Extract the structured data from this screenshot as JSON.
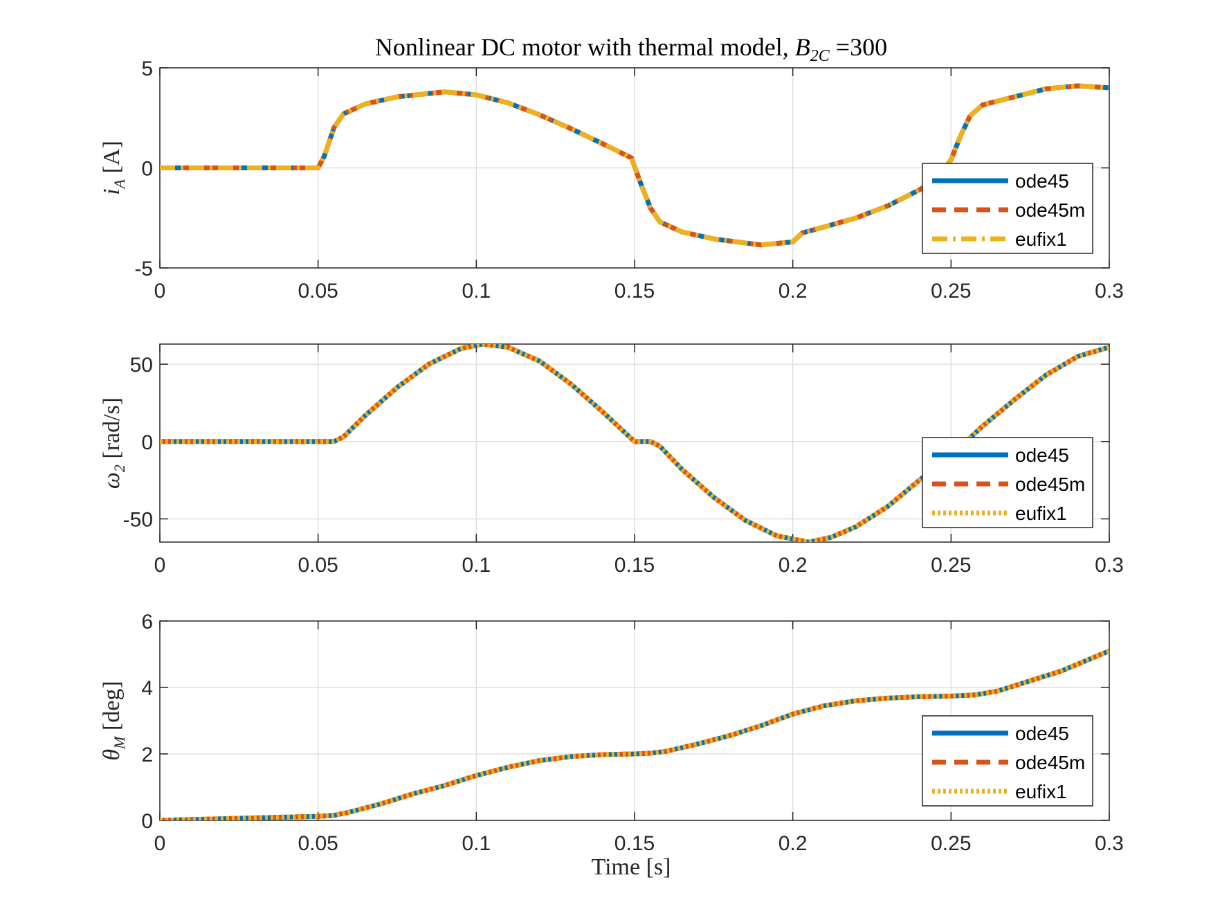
{
  "figure": {
    "title_main": "Nonlinear DC motor with thermal model, ",
    "title_var_base": "B",
    "title_var_sub": "2C",
    "title_value": " =300",
    "xlabel": "Time [s]"
  },
  "chart_data": [
    {
      "type": "line",
      "ylabel": {
        "symbol": "i",
        "sub": "A",
        "unit": " [A]"
      },
      "xlim": [
        0,
        0.3
      ],
      "ylim": [
        -5,
        5
      ],
      "xticks": [
        "0",
        "0.05",
        "0.1",
        "0.15",
        "0.2",
        "0.25",
        "0.3"
      ],
      "yticks": [
        "-5",
        "0",
        "5"
      ],
      "ytick_values": [
        -5,
        0,
        5
      ],
      "grid": true,
      "legend_position": "lower-right",
      "x": [
        0,
        0.05,
        0.052,
        0.055,
        0.058,
        0.065,
        0.075,
        0.09,
        0.1,
        0.11,
        0.12,
        0.13,
        0.14,
        0.149,
        0.152,
        0.155,
        0.158,
        0.165,
        0.175,
        0.19,
        0.2,
        0.203,
        0.21,
        0.22,
        0.23,
        0.24,
        0.245,
        0.25,
        0.253,
        0.256,
        0.26,
        0.27,
        0.28,
        0.29,
        0.3
      ],
      "series": [
        {
          "name": "ode45",
          "style": "solid",
          "color": "#0072BD",
          "values": [
            0,
            0,
            0.6,
            2.0,
            2.7,
            3.2,
            3.55,
            3.8,
            3.65,
            3.25,
            2.65,
            1.95,
            1.2,
            0.5,
            -0.8,
            -2.0,
            -2.7,
            -3.2,
            -3.55,
            -3.85,
            -3.7,
            -3.25,
            -2.95,
            -2.5,
            -1.9,
            -1.1,
            -0.6,
            0.4,
            1.6,
            2.6,
            3.15,
            3.55,
            3.95,
            4.1,
            4.0
          ]
        },
        {
          "name": "ode45m",
          "style": "dashed",
          "color": "#D95319",
          "values": [
            0,
            0,
            0.6,
            2.0,
            2.7,
            3.2,
            3.55,
            3.8,
            3.65,
            3.25,
            2.65,
            1.95,
            1.2,
            0.5,
            -0.8,
            -2.0,
            -2.7,
            -3.2,
            -3.55,
            -3.85,
            -3.7,
            -3.25,
            -2.95,
            -2.5,
            -1.9,
            -1.1,
            -0.6,
            0.4,
            1.6,
            2.6,
            3.15,
            3.55,
            3.95,
            4.1,
            4.0
          ]
        },
        {
          "name": "eufix1",
          "style": "dashdot",
          "color": "#EDB120",
          "values": [
            0,
            0,
            0.6,
            2.0,
            2.7,
            3.2,
            3.55,
            3.8,
            3.65,
            3.25,
            2.65,
            1.95,
            1.2,
            0.5,
            -0.8,
            -2.0,
            -2.7,
            -3.2,
            -3.55,
            -3.85,
            -3.7,
            -3.25,
            -2.95,
            -2.5,
            -1.9,
            -1.1,
            -0.6,
            0.4,
            1.6,
            2.6,
            3.15,
            3.55,
            3.95,
            4.1,
            4.0
          ]
        }
      ]
    },
    {
      "type": "line",
      "ylabel": {
        "symbol": "ω",
        "sub": "2",
        "unit": " [rad/s]"
      },
      "xlim": [
        0,
        0.3
      ],
      "ylim": [
        -65,
        63
      ],
      "xticks": [
        "0",
        "0.05",
        "0.1",
        "0.15",
        "0.2",
        "0.25",
        "0.3"
      ],
      "yticks": [
        "-50",
        "0",
        "50"
      ],
      "ytick_values": [
        -50,
        0,
        50
      ],
      "grid": true,
      "legend_position": "lower-right",
      "x": [
        0,
        0.05,
        0.055,
        0.058,
        0.065,
        0.075,
        0.085,
        0.095,
        0.102,
        0.11,
        0.12,
        0.13,
        0.14,
        0.15,
        0.155,
        0.158,
        0.165,
        0.175,
        0.185,
        0.195,
        0.205,
        0.212,
        0.22,
        0.23,
        0.24,
        0.25,
        0.26,
        0.27,
        0.28,
        0.29,
        0.3
      ],
      "series": [
        {
          "name": "ode45",
          "style": "solid",
          "color": "#0072BD",
          "values": [
            0,
            0,
            0,
            3,
            17,
            35,
            50,
            60,
            63,
            61,
            52,
            37,
            19,
            0,
            0,
            -3,
            -18,
            -36,
            -51,
            -61,
            -65,
            -62,
            -55,
            -42,
            -25,
            -9,
            10,
            27,
            43,
            55,
            61
          ]
        },
        {
          "name": "ode45m",
          "style": "dashed",
          "color": "#D95319",
          "values": [
            0,
            0,
            0,
            3,
            17,
            35,
            50,
            60,
            63,
            61,
            52,
            37,
            19,
            0,
            0,
            -3,
            -18,
            -36,
            -51,
            -61,
            -65,
            -62,
            -55,
            -42,
            -25,
            -9,
            10,
            27,
            43,
            55,
            61
          ]
        },
        {
          "name": "eufix1",
          "style": "dotted",
          "color": "#EDB120",
          "values": [
            0,
            0,
            0,
            3,
            17,
            35,
            50,
            60,
            63,
            61,
            52,
            37,
            19,
            0,
            0,
            -3,
            -18,
            -36,
            -51,
            -61,
            -65,
            -62,
            -55,
            -42,
            -25,
            -9,
            10,
            27,
            43,
            55,
            61
          ]
        }
      ]
    },
    {
      "type": "line",
      "ylabel": {
        "symbol": "θ",
        "sub": "M",
        "unit": " [deg]"
      },
      "xlim": [
        0,
        0.3
      ],
      "ylim": [
        0,
        6
      ],
      "xticks": [
        "0",
        "0.05",
        "0.1",
        "0.15",
        "0.2",
        "0.25",
        "0.3"
      ],
      "yticks": [
        "0",
        "2",
        "4",
        "6"
      ],
      "ytick_values": [
        0,
        2,
        4,
        6
      ],
      "grid": true,
      "legend_position": "lower-right",
      "x": [
        0,
        0.02,
        0.04,
        0.05,
        0.055,
        0.06,
        0.07,
        0.08,
        0.09,
        0.1,
        0.11,
        0.12,
        0.13,
        0.14,
        0.15,
        0.155,
        0.16,
        0.17,
        0.18,
        0.19,
        0.2,
        0.21,
        0.22,
        0.23,
        0.24,
        0.25,
        0.258,
        0.265,
        0.275,
        0.285,
        0.3
      ],
      "series": [
        {
          "name": "ode45",
          "style": "solid",
          "color": "#0072BD",
          "values": [
            0,
            0.05,
            0.1,
            0.12,
            0.15,
            0.25,
            0.5,
            0.8,
            1.05,
            1.35,
            1.6,
            1.8,
            1.92,
            1.98,
            2.0,
            2.02,
            2.08,
            2.3,
            2.55,
            2.85,
            3.2,
            3.45,
            3.6,
            3.68,
            3.72,
            3.74,
            3.78,
            3.9,
            4.2,
            4.5,
            5.1
          ]
        },
        {
          "name": "ode45m",
          "style": "dashed",
          "color": "#D95319",
          "values": [
            0,
            0.05,
            0.1,
            0.12,
            0.15,
            0.25,
            0.5,
            0.8,
            1.05,
            1.35,
            1.6,
            1.8,
            1.92,
            1.98,
            2.0,
            2.02,
            2.08,
            2.3,
            2.55,
            2.85,
            3.2,
            3.45,
            3.6,
            3.68,
            3.72,
            3.74,
            3.78,
            3.9,
            4.2,
            4.5,
            5.1
          ]
        },
        {
          "name": "eufix1",
          "style": "dotted",
          "color": "#EDB120",
          "values": [
            0,
            0.05,
            0.1,
            0.12,
            0.15,
            0.25,
            0.5,
            0.8,
            1.05,
            1.35,
            1.6,
            1.8,
            1.92,
            1.98,
            2.0,
            2.02,
            2.08,
            2.3,
            2.55,
            2.85,
            3.2,
            3.45,
            3.6,
            3.68,
            3.72,
            3.74,
            3.78,
            3.9,
            4.2,
            4.5,
            5.1
          ]
        }
      ]
    }
  ]
}
